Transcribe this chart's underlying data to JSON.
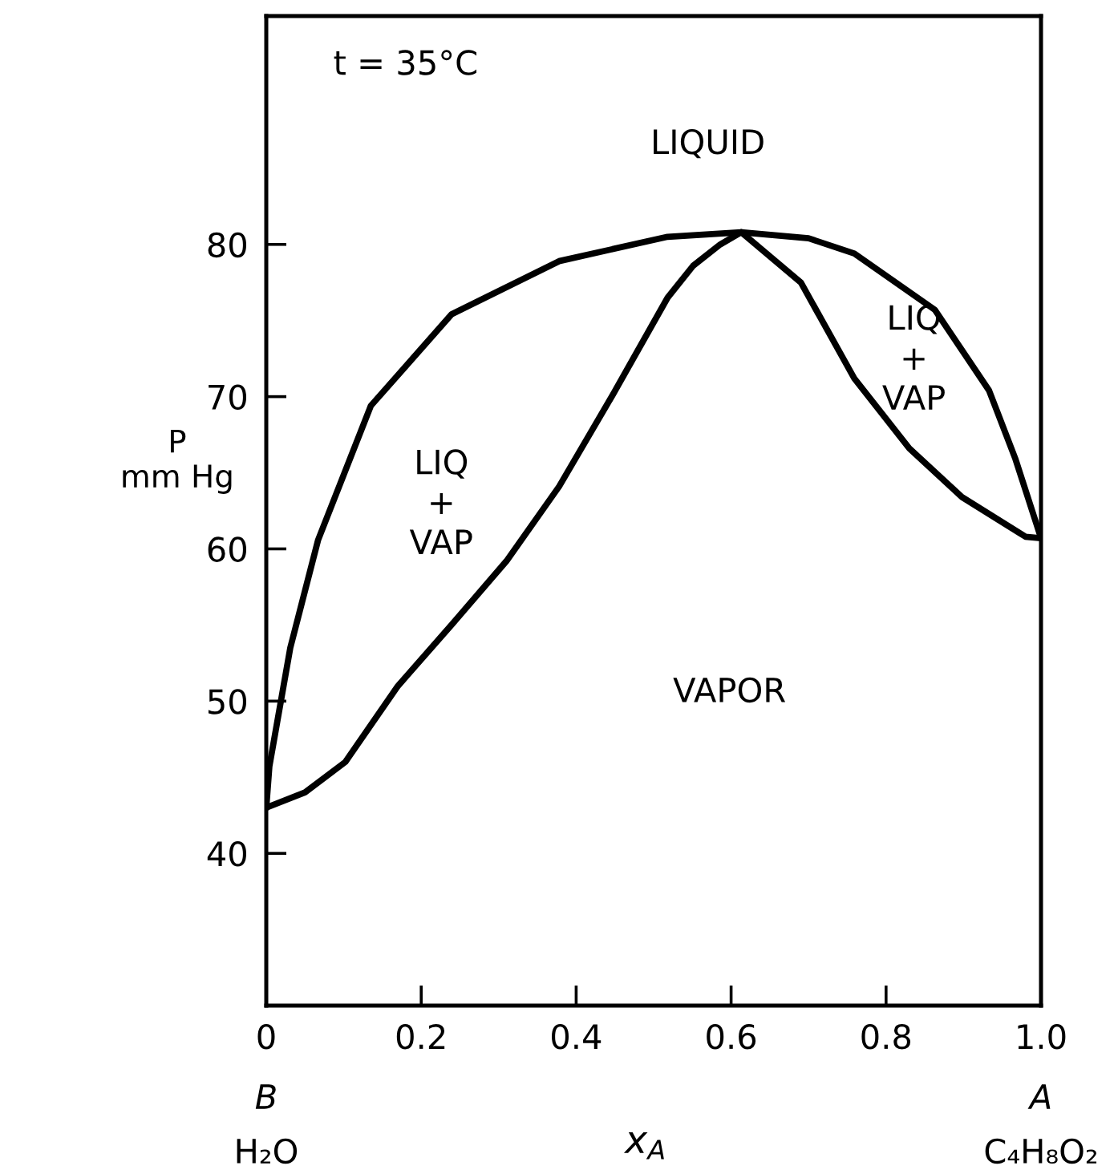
{
  "chart_data": {
    "type": "line",
    "xlabel": "x$_{A}$",
    "ylabel": "P\nmm Hg",
    "series": [
      {
        "color": "#000000",
        "x": [
          0,
          0.004,
          0.031,
          0.067,
          0.135,
          0.239,
          0.378,
          0.518,
          0.613,
          0.7,
          0.759,
          0.863,
          0.933,
          0.967,
          1.0
        ],
        "values": [
          43,
          45.7,
          53.5,
          60.6,
          69.4,
          75.4,
          78.9,
          80.5,
          80.8,
          80.4,
          79.4,
          75.7,
          70.4,
          65.9,
          60.7
        ]
      },
      {
        "color": "#000000",
        "x": [
          0,
          0.05,
          0.102,
          0.17,
          0.239,
          0.31,
          0.378,
          0.447,
          0.518,
          0.551,
          0.586,
          0.613,
          0.69,
          0.759,
          0.83,
          0.898,
          0.98,
          1.0
        ],
        "values": [
          43,
          44.0,
          46.0,
          51.0,
          55.0,
          59.2,
          64.1,
          70.1,
          76.5,
          78.6,
          80.0,
          80.8,
          77.5,
          71.2,
          66.6,
          63.4,
          60.8,
          60.7
        ]
      }
    ],
    "xlim": [
      0,
      1
    ],
    "ylim": [
      30,
      95
    ],
    "xticks": [
      0,
      0.2,
      0.4,
      0.6,
      0.8,
      {
        "value": 1,
        "label": "1.0"
      }
    ],
    "yticks": [
      40,
      50,
      60,
      70,
      80
    ],
    "marker": "none",
    "line_style": "solid",
    "grid": false,
    "legend": false,
    "annotations": [
      "t = 35°C",
      "LIQUID",
      "LIQ\n+\nVAP",
      "LIQ\n+\nVAP",
      "VAPOR",
      "B",
      "H₂O",
      "A",
      "C₄H₈O₂"
    ]
  }
}
